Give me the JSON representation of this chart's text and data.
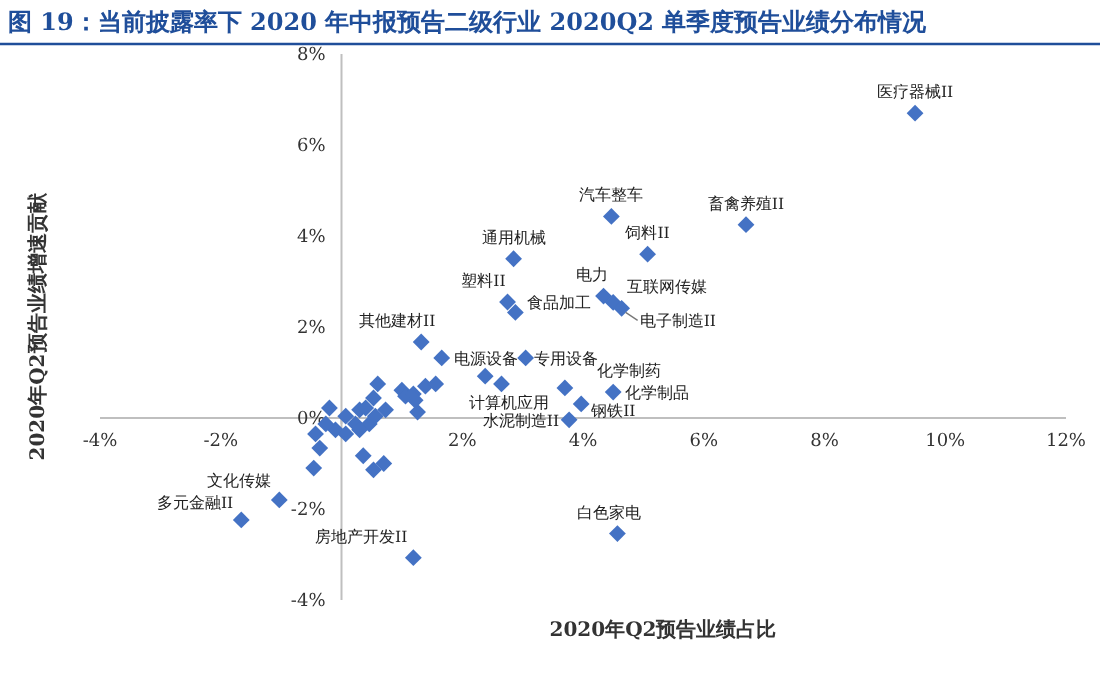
{
  "chart_data": {
    "type": "scatter",
    "title": "图 19：当前披露率下 2020 年中报预告二级行业 2020Q2 单季度预告业绩分布情况",
    "xlabel": "2020年Q2预告业绩占比",
    "ylabel": "2020年Q2预告业绩增速贡献",
    "xlim": [
      -4,
      12
    ],
    "ylim": [
      -4,
      8
    ],
    "xticks": [
      {
        "value": -4,
        "label": "-4%"
      },
      {
        "value": -2,
        "label": "-2%"
      },
      {
        "value": 0,
        "label": null
      },
      {
        "value": 2,
        "label": "2%"
      },
      {
        "value": 4,
        "label": "4%"
      },
      {
        "value": 6,
        "label": "6%"
      },
      {
        "value": 8,
        "label": "8%"
      },
      {
        "value": 10,
        "label": "10%"
      },
      {
        "value": 12,
        "label": "12%"
      }
    ],
    "yticks": [
      {
        "value": -4,
        "label": "-4%"
      },
      {
        "value": -2,
        "label": "-2%"
      },
      {
        "value": 0,
        "label": "0%"
      },
      {
        "value": 2,
        "label": "2%"
      },
      {
        "value": 4,
        "label": "4%"
      },
      {
        "value": 6,
        "label": "6%"
      },
      {
        "value": 8,
        "label": "8%"
      }
    ],
    "grid": false,
    "marker": "diamond",
    "series": [
      {
        "color": "#4472c4",
        "x": [
          9.5,
          6.7,
          4.47,
          5.07,
          2.85,
          2.75,
          2.88,
          4.34,
          4.5,
          4.64,
          1.32,
          1.66,
          3.05,
          2.65,
          3.7,
          4.5,
          3.97,
          3.77,
          4.57,
          1.19,
          -1.03,
          -1.66,
          2.38,
          0.6,
          0.53,
          -0.2,
          -0.43,
          -0.36,
          -0.46,
          0.36,
          0.7,
          0.53,
          1.26,
          1.0,
          1.06,
          1.19,
          1.39,
          1.56,
          1.22,
          0.07,
          0.3,
          0.4,
          0.23,
          -0.1,
          -0.26,
          0.46,
          0.56,
          0.73,
          0.07,
          0.3
        ],
        "values": [
          6.7,
          4.25,
          4.43,
          3.6,
          3.5,
          2.55,
          2.32,
          2.68,
          2.54,
          2.41,
          1.67,
          1.32,
          1.32,
          0.75,
          0.66,
          0.57,
          0.31,
          -0.04,
          -2.54,
          -3.07,
          -1.8,
          -2.24,
          0.92,
          0.75,
          0.44,
          0.22,
          -0.35,
          -0.66,
          -1.1,
          -0.83,
          -1.0,
          -1.14,
          0.13,
          0.61,
          0.48,
          0.53,
          0.7,
          0.75,
          0.39,
          0.04,
          0.18,
          0.22,
          -0.13,
          -0.26,
          -0.13,
          -0.13,
          0.04,
          0.18,
          -0.35,
          -0.26
        ]
      }
    ],
    "annotations": [
      {
        "text": "医疗器械II",
        "x": 9.5,
        "y": 6.7
      },
      {
        "text": "畜禽养殖II",
        "x": 6.7,
        "y": 4.25
      },
      {
        "text": "汽车整车",
        "x": 4.47,
        "y": 4.43
      },
      {
        "text": "饲料II",
        "x": 5.07,
        "y": 3.6
      },
      {
        "text": "通用机械",
        "x": 2.85,
        "y": 3.5
      },
      {
        "text": "塑料II",
        "x": 2.75,
        "y": 2.55
      },
      {
        "text": "食品加工",
        "x": 2.88,
        "y": 2.32
      },
      {
        "text": "电力",
        "x": 4.34,
        "y": 2.68
      },
      {
        "text": "互联网传媒",
        "x": 4.5,
        "y": 2.54
      },
      {
        "text": "电子制造II",
        "x": 4.64,
        "y": 2.41
      },
      {
        "text": "其他建材II",
        "x": 1.32,
        "y": 1.67
      },
      {
        "text": "电源设备",
        "x": 1.66,
        "y": 1.32
      },
      {
        "text": "专用设备",
        "x": 3.05,
        "y": 1.32
      },
      {
        "text": "计算机应用",
        "x": 2.65,
        "y": 0.75
      },
      {
        "text": "化学制药",
        "x": 3.7,
        "y": 0.66
      },
      {
        "text": "化学制品",
        "x": 4.5,
        "y": 0.57
      },
      {
        "text": "钢铁II",
        "x": 3.97,
        "y": 0.31
      },
      {
        "text": "水泥制造II",
        "x": 3.77,
        "y": -0.04
      },
      {
        "text": "白色家电",
        "x": 4.57,
        "y": -2.54
      },
      {
        "text": "房地产开发II",
        "x": 1.19,
        "y": -3.07
      },
      {
        "text": "文化传媒",
        "x": -1.03,
        "y": -1.8
      },
      {
        "text": "多元金融II",
        "x": -1.66,
        "y": -2.24
      }
    ]
  }
}
